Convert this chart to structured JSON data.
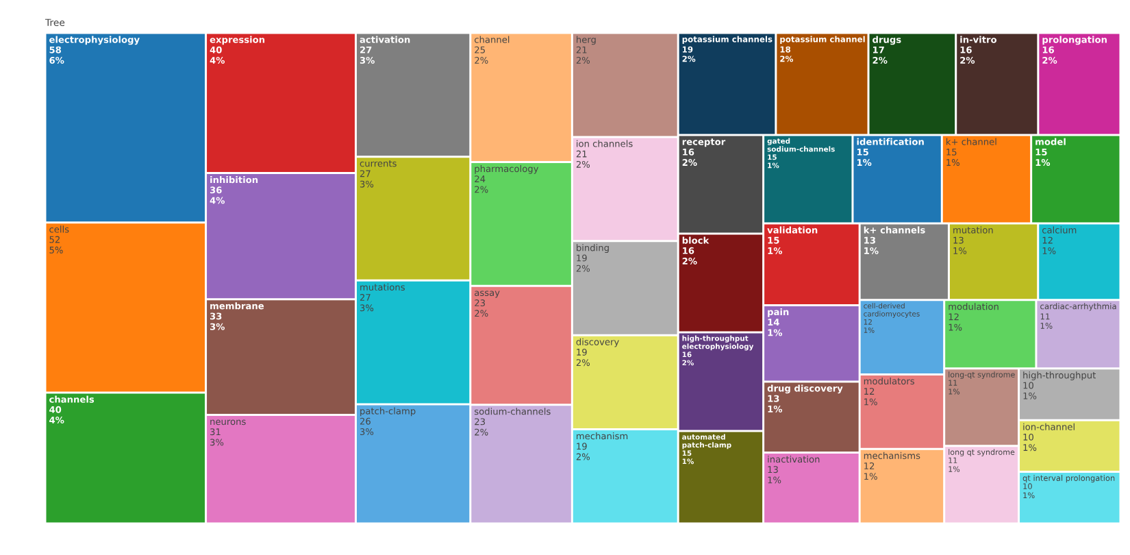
{
  "chart_data": {
    "type": "other",
    "title": "Tree",
    "categories": [
      "electrophysiology",
      "cells",
      "channels",
      "expression",
      "inhibition",
      "membrane",
      "neurons",
      "activation",
      "currents",
      "mutations",
      "patch-clamp",
      "channel",
      "pharmacology",
      "assay",
      "sodium-channels",
      "herg",
      "ion channels",
      "binding",
      "discovery",
      "mechanism",
      "potassium channels",
      "potassium channel",
      "drugs",
      "in-vitro",
      "prolongation",
      "receptor",
      "block",
      "high-throughput electrophysiology",
      "automated patch-clamp",
      "gated sodium-channels",
      "identification",
      "k+ channel",
      "model",
      "validation",
      "pain",
      "drug discovery",
      "inactivation",
      "k+ channels",
      "mutation",
      "calcium",
      "cell-derived cardiomyocytes",
      "modulators",
      "mechanisms",
      "modulation",
      "cardiac-arrhythmia",
      "long-qt syndrome",
      "long qt syndrome",
      "high-throughput",
      "ion-channel",
      "qt interval prolongation"
    ],
    "values": [
      58,
      52,
      40,
      40,
      36,
      33,
      31,
      27,
      27,
      27,
      26,
      25,
      24,
      23,
      23,
      21,
      21,
      19,
      19,
      19,
      19,
      18,
      17,
      16,
      16,
      16,
      16,
      16,
      15,
      15,
      15,
      15,
      15,
      15,
      14,
      13,
      13,
      13,
      13,
      12,
      12,
      12,
      12,
      12,
      11,
      11,
      11,
      10,
      10,
      10
    ],
    "value_labels": [
      "58\n6%",
      "52\n5%",
      "40\n4%",
      "40\n4%",
      "36\n4%",
      "33\n3%",
      "31\n3%",
      "27\n3%",
      "27\n3%",
      "27\n3%",
      "26\n3%",
      "25\n2%",
      "24\n2%",
      "23\n2%",
      "23\n2%",
      "21\n2%",
      "21\n2%",
      "19\n2%",
      "19\n2%",
      "19\n2%",
      "19\n2%",
      "18\n2%",
      "17\n2%",
      "16\n2%",
      "16\n2%",
      "16\n2%",
      "16\n2%",
      "16\n2%",
      "15\n1%",
      "15\n1%",
      "15\n1%",
      "15\n1%",
      "15\n1%",
      "15\n1%",
      "14\n1%",
      "13\n1%",
      "13\n1%",
      "13\n1%",
      "13\n1%",
      "12\n1%",
      "12\n1%",
      "12\n1%",
      "12\n1%",
      "12\n1%",
      "11\n1%",
      "11\n1%",
      "11\n1%",
      "10\n1%",
      "10\n1%",
      "10\n1%"
    ],
    "colors": [
      "#1f77b4",
      "#ff7f0e",
      "#2ca02c",
      "#d62728",
      "#9467bd",
      "#8c564b",
      "#e377c2",
      "#7f7f7f",
      "#bcbd22",
      "#17becf",
      "#57a9e2",
      "#ffb574",
      "#5fd35f",
      "#e77c7c",
      "#c6aedc",
      "#bc8b81",
      "#f4cae4",
      "#b0b0b0",
      "#e2e362",
      "#5fe0ed",
      "#103d5d",
      "#a94f00",
      "#154e15",
      "#4a2e29",
      "#cc2a9a",
      "#4a4a4a",
      "#7e1515",
      "#603b80",
      "#686913",
      "#0d6b73",
      "#1f77b4",
      "#ff7f0e",
      "#2ca02c",
      "#d62728",
      "#9467bd",
      "#8c564b",
      "#e377c2",
      "#7f7f7f",
      "#bcbd22",
      "#17becf",
      "#57a9e2",
      "#e77c7c",
      "#ffb574",
      "#5fd35f",
      "#c6aedc",
      "#bc8b81",
      "#f4cae4",
      "#b0b0b0",
      "#e2e362",
      "#5fe0ed"
    ]
  }
}
